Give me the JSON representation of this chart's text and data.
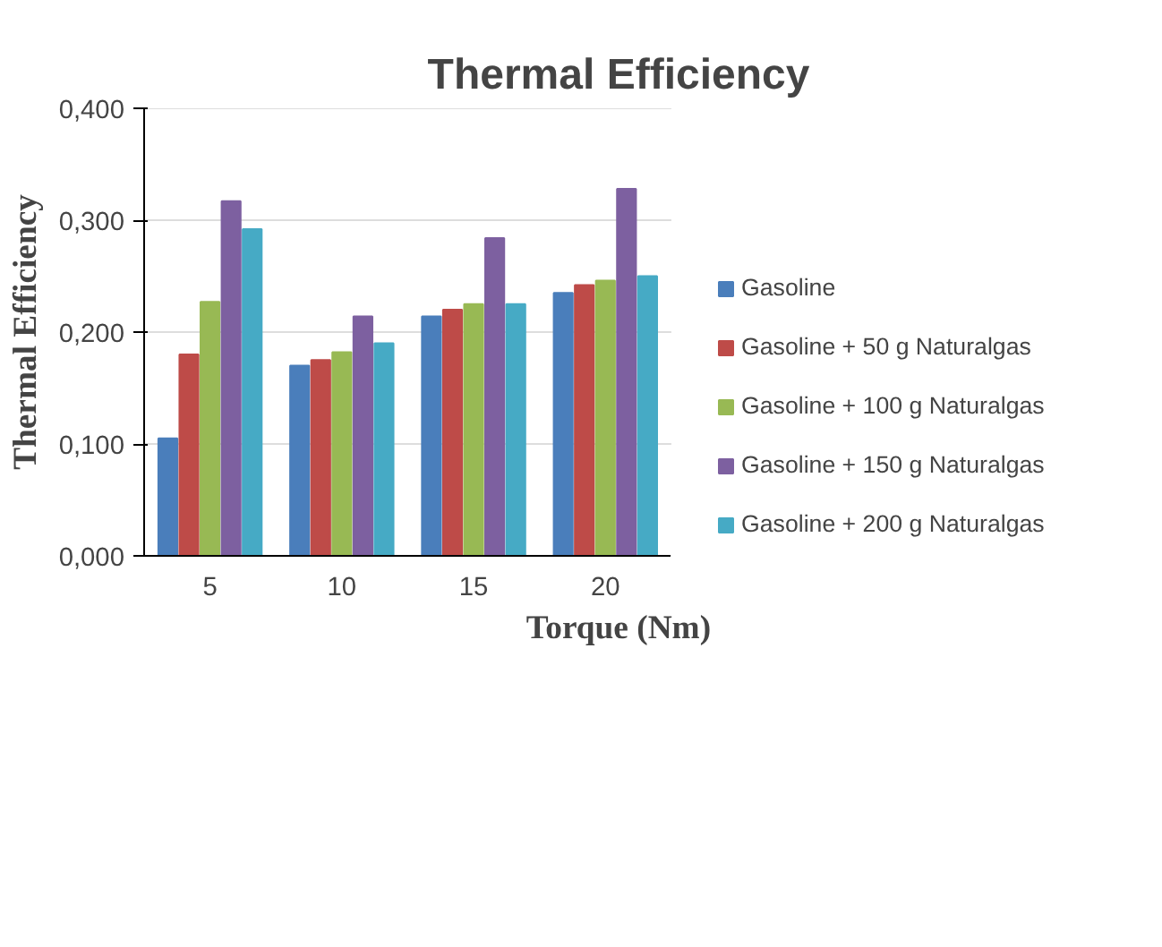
{
  "chart_data": {
    "type": "bar",
    "title": "Thermal Efficiency",
    "xlabel": "Torque (Nm)",
    "ylabel": "Thermal Efficiency",
    "categories": [
      "5",
      "10",
      "15",
      "20"
    ],
    "series": [
      {
        "name": "Gasoline",
        "color": "#4a7ebb",
        "values": [
          0.105,
          0.17,
          0.214,
          0.235
        ]
      },
      {
        "name": "Gasoline + 50 g Naturalgas",
        "color": "#be4b48",
        "values": [
          0.18,
          0.175,
          0.22,
          0.242
        ]
      },
      {
        "name": "Gasoline + 100 g Naturalgas",
        "color": "#98b954",
        "values": [
          0.227,
          0.182,
          0.225,
          0.246
        ]
      },
      {
        "name": "Gasoline + 150 g Naturalgas",
        "color": "#7d60a0",
        "values": [
          0.317,
          0.214,
          0.284,
          0.328
        ]
      },
      {
        "name": "Gasoline + 200 g Naturalgas",
        "color": "#46aac5",
        "values": [
          0.292,
          0.19,
          0.225,
          0.25
        ]
      }
    ],
    "ylim": [
      0,
      0.4
    ],
    "yticks": [
      {
        "value": 0,
        "label": "0,000"
      },
      {
        "value": 0.1,
        "label": "0,100"
      },
      {
        "value": 0.2,
        "label": "0,200"
      },
      {
        "value": 0.3,
        "label": "0,300"
      },
      {
        "value": 0.4,
        "label": "0,400"
      }
    ],
    "grid": "y",
    "legend": "right"
  }
}
